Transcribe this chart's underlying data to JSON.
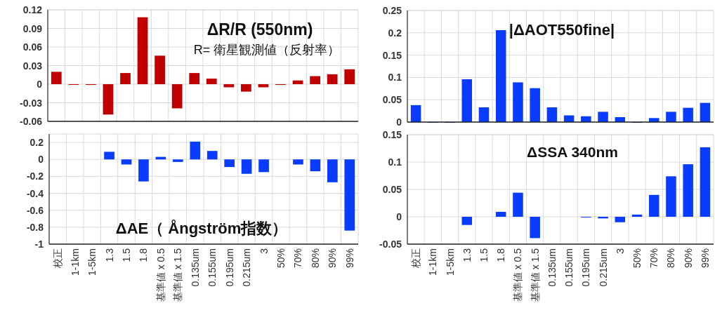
{
  "chart_data": [
    {
      "type": "bar",
      "title": "ΔR/R (550nm)",
      "subtitle": "R= 衛星観測値（反射率）",
      "categories": [
        null,
        null,
        null,
        null,
        null,
        null,
        null,
        null,
        null,
        null,
        null,
        null,
        null,
        null,
        null,
        null,
        null,
        null
      ],
      "values": [
        0.02,
        0,
        0,
        -0.049,
        0.018,
        0.108,
        0.046,
        -0.039,
        0.018,
        0.009,
        -0.005,
        -0.012,
        -0.005,
        -0.001,
        0.006,
        0.013,
        0.016,
        0.024
      ],
      "color": "#c00000",
      "ylim": [
        -0.06,
        0.12
      ],
      "yticks": [
        -0.06,
        -0.03,
        0,
        0.03,
        0.06,
        0.09,
        0.12
      ],
      "grid": true,
      "tick_labels": "y"
    },
    {
      "type": "bar",
      "title": "|ΔAOT550fine|",
      "categories": [
        null,
        null,
        null,
        null,
        null,
        null,
        null,
        null,
        null,
        null,
        null,
        null,
        null,
        null,
        null,
        null,
        null,
        null
      ],
      "values": [
        0.038,
        0,
        0,
        0.096,
        0.033,
        0.206,
        0.089,
        0.076,
        0.033,
        0.015,
        0.013,
        0.023,
        0.011,
        0,
        0.009,
        0.023,
        0.032,
        0.043
      ],
      "color": "#0a3cff",
      "ylim": [
        0,
        0.25
      ],
      "yticks": [
        0,
        0.05,
        0.1,
        0.15,
        0.2,
        0.25
      ],
      "grid": true,
      "tick_labels": "y"
    },
    {
      "type": "bar",
      "title": "ΔAE（ Ångström指数）",
      "categories": [
        "校正",
        "1-1km",
        "1-5km",
        "1.3",
        "1.5",
        "1.8",
        "基準値 x 0.5",
        "基準値 x 1.5",
        "0.135um",
        "0.155um",
        "0.195um",
        "0.215um",
        "3",
        "50%",
        "70%",
        "80%",
        "90%",
        "99%"
      ],
      "values": [
        null,
        null,
        null,
        0.09,
        -0.06,
        -0.26,
        0.03,
        -0.03,
        0.21,
        0.1,
        -0.09,
        -0.17,
        -0.15,
        null,
        -0.06,
        -0.14,
        -0.27,
        -0.84
      ],
      "color": "#0a3cff",
      "ylim": [
        -1,
        0.3
      ],
      "yticks": [
        -1,
        -0.8,
        -0.6,
        -0.4,
        -0.2,
        0,
        0.2
      ],
      "grid": true
    },
    {
      "type": "bar",
      "title": "ΔSSA 340nm",
      "categories": [
        "校正",
        "1-1km",
        "1-5km",
        "1.3",
        "1.5",
        "1.8",
        "基準値 x 0.5",
        "基準値 x 1.5",
        "0.135um",
        "0.155um",
        "0.195um",
        "0.215um",
        "3",
        "50%",
        "70%",
        "80%",
        "90%",
        "99%"
      ],
      "values": [
        null,
        null,
        null,
        -0.015,
        null,
        0.009,
        0.044,
        -0.039,
        null,
        null,
        -0.001,
        -0.003,
        -0.01,
        0.004,
        0.04,
        0.074,
        0.096,
        0.127
      ],
      "color": "#0a3cff",
      "ylim": [
        -0.05,
        0.15
      ],
      "yticks": [
        -0.05,
        0,
        0.05,
        0.1,
        0.15
      ],
      "grid": true
    }
  ]
}
